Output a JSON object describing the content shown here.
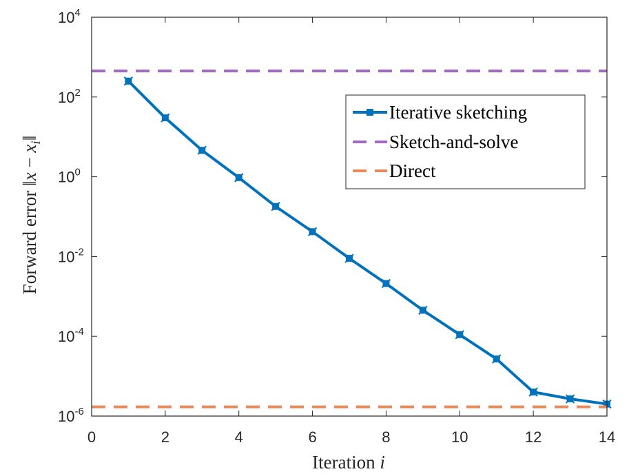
{
  "chart_data": {
    "type": "line",
    "xlabel": "Iteration i",
    "ylabel": "Forward error ||x − x_i||",
    "xlim": [
      0,
      14
    ],
    "ylim": [
      1e-06,
      10000.0
    ],
    "yscale": "log",
    "x_ticks": [
      "0",
      "2",
      "4",
      "6",
      "8",
      "10",
      "12",
      "14"
    ],
    "y_ticks": [
      {
        "base": "10",
        "exp": "-6"
      },
      {
        "base": "10",
        "exp": "-4"
      },
      {
        "base": "10",
        "exp": "-2"
      },
      {
        "base": "10",
        "exp": "0"
      },
      {
        "base": "10",
        "exp": "2"
      },
      {
        "base": "10",
        "exp": "4"
      }
    ],
    "grid": false,
    "legend_position": "upper-right",
    "series": [
      {
        "name": "Iterative sketching",
        "style": "solid-marker",
        "color": "#0072BD",
        "x": [
          1,
          2,
          3,
          4,
          5,
          6,
          7,
          8,
          9,
          10,
          11,
          12,
          13,
          14
        ],
        "values": [
          250,
          30,
          4.6,
          0.95,
          0.18,
          0.042,
          0.009,
          0.0021,
          0.00045,
          0.00011,
          2.7e-05,
          4e-06,
          2.7e-06,
          2e-06
        ]
      },
      {
        "name": "Sketch-and-solve",
        "style": "dashed",
        "color": "#A369C2",
        "constant": 450
      },
      {
        "name": "Direct",
        "style": "dashed",
        "color": "#E8895C",
        "constant": 1.7e-06
      }
    ]
  }
}
